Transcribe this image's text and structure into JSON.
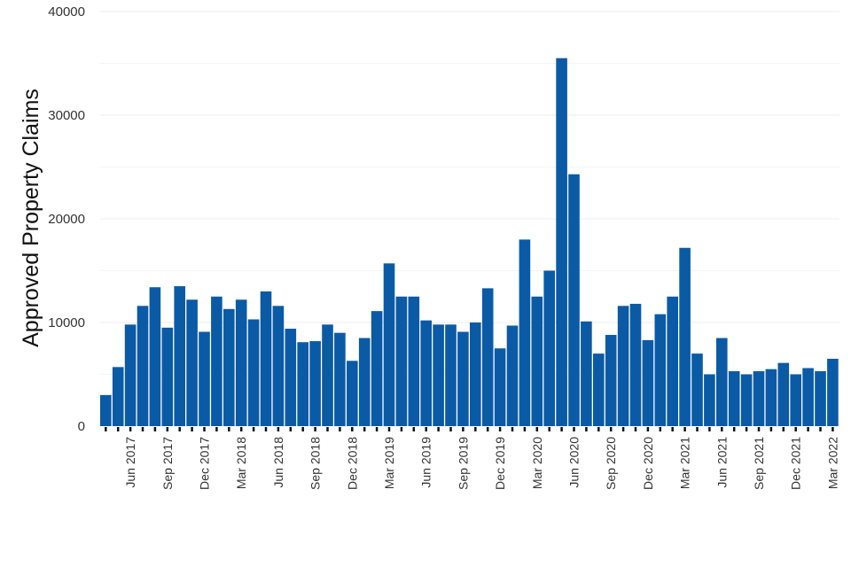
{
  "chart_data": {
    "type": "bar",
    "title": "",
    "xlabel": "",
    "ylabel": "Approved Property Claims",
    "ylim": [
      0,
      40000
    ],
    "yticks": [
      0,
      10000,
      20000,
      30000,
      40000
    ],
    "grid": true,
    "bar_color": "#0b5aa6",
    "categories": [
      "Apr 2017",
      "May 2017",
      "Jun 2017",
      "Jul 2017",
      "Aug 2017",
      "Sep 2017",
      "Oct 2017",
      "Nov 2017",
      "Dec 2017",
      "Jan 2018",
      "Feb 2018",
      "Mar 2018",
      "Apr 2018",
      "May 2018",
      "Jun 2018",
      "Jul 2018",
      "Aug 2018",
      "Sep 2018",
      "Oct 2018",
      "Nov 2018",
      "Dec 2018",
      "Jan 2019",
      "Feb 2019",
      "Mar 2019",
      "Apr 2019",
      "May 2019",
      "Jun 2019",
      "Jul 2019",
      "Aug 2019",
      "Sep 2019",
      "Oct 2019",
      "Nov 2019",
      "Dec 2019",
      "Jan 2020",
      "Feb 2020",
      "Mar 2020",
      "Apr 2020",
      "May 2020",
      "Jun 2020",
      "Jul 2020",
      "Aug 2020",
      "Sep 2020",
      "Oct 2020",
      "Nov 2020",
      "Dec 2020",
      "Jan 2021",
      "Feb 2021",
      "Mar 2021",
      "Apr 2021",
      "May 2021",
      "Jun 2021",
      "Jul 2021",
      "Aug 2021",
      "Sep 2021",
      "Oct 2021",
      "Nov 2021",
      "Dec 2021",
      "Jan 2022",
      "Feb 2022",
      "Mar 2022"
    ],
    "values": [
      3000,
      5700,
      9800,
      11600,
      13400,
      9500,
      13500,
      12200,
      9100,
      12500,
      11300,
      12200,
      10300,
      13000,
      11600,
      9400,
      8100,
      8200,
      9800,
      9000,
      6300,
      8500,
      11100,
      15700,
      12500,
      12500,
      10200,
      9800,
      9800,
      9100,
      10000,
      13300,
      7500,
      9700,
      18000,
      12500,
      15000,
      35500,
      24300,
      10100,
      7000,
      8800,
      11600,
      11800,
      8300,
      10800,
      12500,
      17200,
      7000,
      5000,
      8500,
      5300,
      5000,
      5300,
      5500,
      6100,
      5000,
      5600,
      5300,
      6500
    ],
    "x_tick_labels": [
      "Jun 2017",
      "Sep 2017",
      "Dec 2017",
      "Mar 2018",
      "Jun 2018",
      "Sep 2018",
      "Dec 2018",
      "Mar 2019",
      "Jun 2019",
      "Sep 2019",
      "Dec 2019",
      "Mar 2020",
      "Jun 2020",
      "Sep 2020",
      "Dec 2020",
      "Mar 2021",
      "Jun 2021",
      "Sep 2021",
      "Dec 2021",
      "Mar 2022"
    ]
  }
}
